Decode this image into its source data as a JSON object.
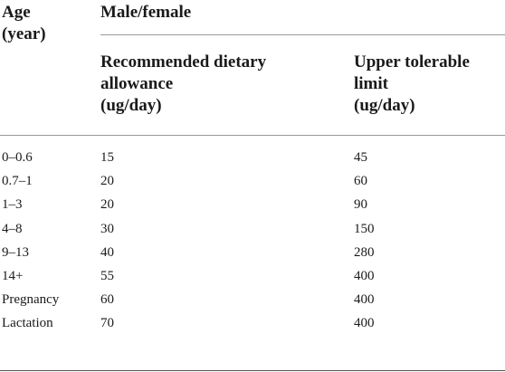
{
  "table": {
    "headers": {
      "age": "Age\n(year)",
      "group": "Male/female",
      "rda": "Recommended dietary\nallowance\n(ug/day)",
      "ul": "Upper tolerable\nlimit\n(ug/day)"
    },
    "rows": [
      {
        "age": "0–0.6",
        "rda": "15",
        "ul": "45"
      },
      {
        "age": "0.7–1",
        "rda": "20",
        "ul": "60"
      },
      {
        "age": "1–3",
        "rda": "20",
        "ul": "90"
      },
      {
        "age": "4–8",
        "rda": "30",
        "ul": "150"
      },
      {
        "age": "9–13",
        "rda": "40",
        "ul": "280"
      },
      {
        "age": "14+",
        "rda": "55",
        "ul": "400"
      },
      {
        "age": "Pregnancy",
        "rda": "60",
        "ul": "400"
      },
      {
        "age": "Lactation",
        "rda": "70",
        "ul": "400"
      }
    ]
  }
}
